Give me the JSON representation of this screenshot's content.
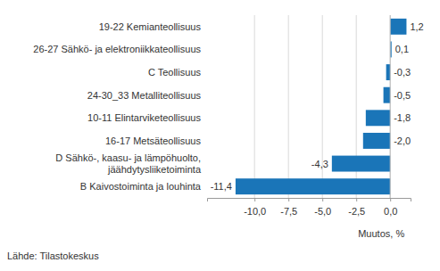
{
  "chart_data": {
    "type": "bar",
    "orientation": "horizontal",
    "categories": [
      "19-22 Kemianteollisuus",
      "26-27 Sähkö- ja elektroniikkateollisuus",
      "C Teollisuus",
      "24-30_33 Metalliteollisuus",
      "10-11 Elintarviketeollisuus",
      "16-17 Metsäteollisuus",
      "D Sähkö-, kaasu- ja lämpöhuolto,\njäähdytysliiketoiminta",
      "B Kaivostoiminta ja louhinta"
    ],
    "values": [
      1.2,
      0.1,
      -0.3,
      -0.5,
      -1.8,
      -2.0,
      -4.3,
      -11.4
    ],
    "value_labels": [
      "1,2",
      "0,1",
      "-0,3",
      "-0,5",
      "-1,8",
      "-2,0",
      "-4,3",
      "-11,4"
    ],
    "data_labels": true,
    "color": "#1a75b8",
    "x_label": "Muutos, %",
    "source": "Lähde: Tilastokeskus",
    "xlim": [
      -13.5,
      1.5
    ],
    "xticks": [
      {
        "value": -10,
        "label": "-10,0"
      },
      {
        "value": -7.5,
        "label": "-7,5"
      },
      {
        "value": -5,
        "label": "-5,0"
      },
      {
        "value": -2.5,
        "label": "-2,5"
      },
      {
        "value": 0,
        "label": "0,0"
      }
    ],
    "grid": true
  }
}
